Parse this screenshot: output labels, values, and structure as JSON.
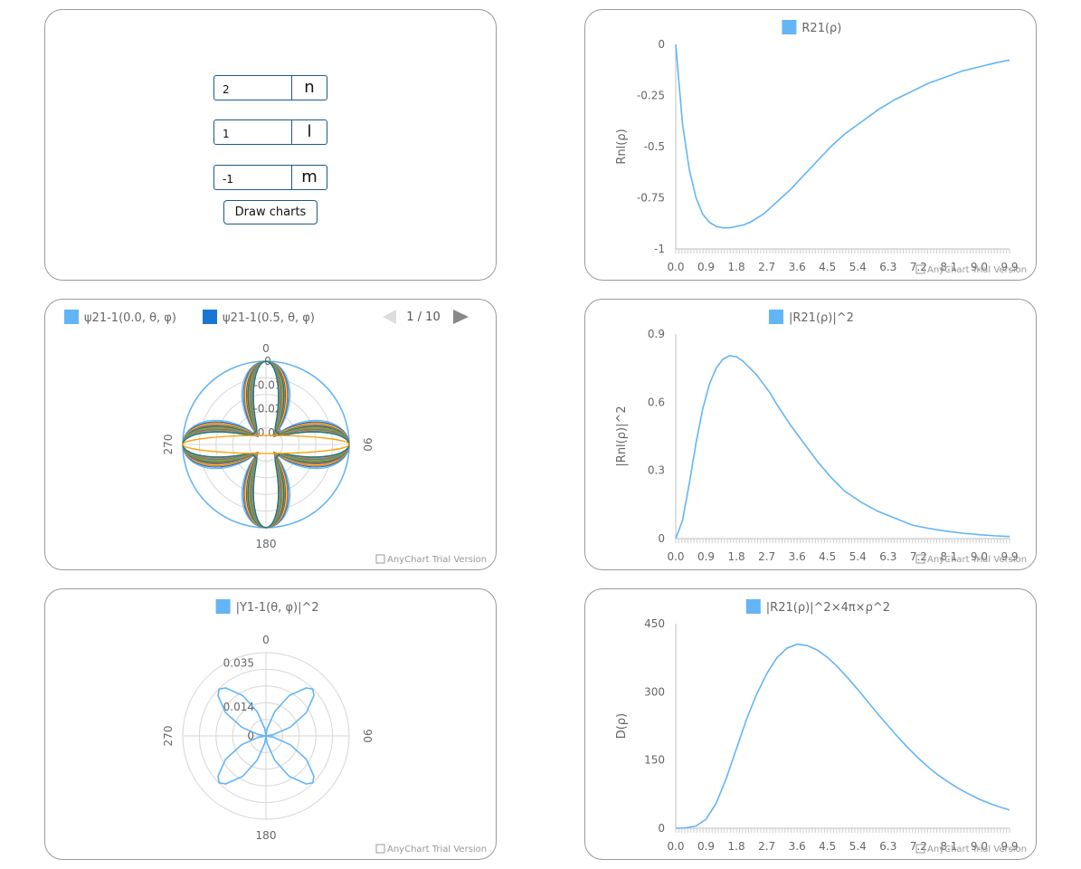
{
  "form": {
    "fields": [
      {
        "value": "2",
        "label": "n"
      },
      {
        "value": "1",
        "label": "l"
      },
      {
        "value": "-1",
        "label": "m"
      }
    ],
    "button_label": "Draw charts"
  },
  "watermark": "AnyChart Trial Version",
  "colors": {
    "series": "#64b5f6",
    "series_dark": "#1976d2",
    "grid": "#d6d6d6",
    "axis": "#bfbfbf",
    "text": "#666666"
  },
  "chart_data": [
    {
      "id": "radial",
      "type": "line",
      "legend": "R21(ρ)",
      "ylabel": "Rnl(ρ)",
      "xlabel": "",
      "x_ticks": [
        "0.0",
        "0.9",
        "1.8",
        "2.7",
        "3.6",
        "4.5",
        "5.4",
        "6.3",
        "7.2",
        "8.1",
        "9.0",
        "9.9"
      ],
      "y_ticks": [
        "0",
        "-0.25",
        "-0.5",
        "-0.75",
        "-1"
      ],
      "xlim": [
        0,
        9.9
      ],
      "ylim": [
        -1,
        0
      ],
      "x": [
        0.0,
        0.2,
        0.4,
        0.6,
        0.8,
        1.0,
        1.2,
        1.4,
        1.6,
        1.8,
        2.0,
        2.2,
        2.4,
        2.6,
        2.8,
        3.0,
        3.4,
        3.8,
        4.2,
        4.6,
        5.0,
        5.5,
        6.0,
        6.5,
        7.0,
        7.5,
        8.0,
        8.5,
        9.0,
        9.5,
        9.9
      ],
      "y": [
        0,
        -0.39,
        -0.61,
        -0.75,
        -0.83,
        -0.87,
        -0.89,
        -0.897,
        -0.897,
        -0.89,
        -0.883,
        -0.87,
        -0.85,
        -0.83,
        -0.8,
        -0.77,
        -0.71,
        -0.64,
        -0.57,
        -0.5,
        -0.44,
        -0.38,
        -0.32,
        -0.27,
        -0.23,
        -0.19,
        -0.16,
        -0.13,
        -0.11,
        -0.09,
        -0.077
      ]
    },
    {
      "id": "radial-squared",
      "type": "line",
      "legend": "|R21(ρ)|^2",
      "ylabel": "|Rnl(ρ)|^2",
      "xlabel": "",
      "x_ticks": [
        "0.0",
        "0.9",
        "1.8",
        "2.7",
        "3.6",
        "4.5",
        "5.4",
        "6.3",
        "7.2",
        "8.1",
        "9.0",
        "9.9"
      ],
      "y_ticks": [
        "0.9",
        "0.6",
        "0.3",
        "0"
      ],
      "xlim": [
        0,
        9.9
      ],
      "ylim": [
        0,
        0.9
      ],
      "x": [
        0.0,
        0.2,
        0.4,
        0.6,
        0.8,
        1.0,
        1.2,
        1.4,
        1.6,
        1.8,
        2.0,
        2.2,
        2.4,
        2.6,
        2.8,
        3.0,
        3.4,
        3.8,
        4.2,
        4.6,
        5.0,
        5.5,
        6.0,
        6.5,
        7.0,
        7.5,
        8.0,
        8.5,
        9.0,
        9.5,
        9.9
      ],
      "y": [
        0,
        0.08,
        0.24,
        0.42,
        0.57,
        0.68,
        0.75,
        0.79,
        0.805,
        0.8,
        0.78,
        0.75,
        0.72,
        0.68,
        0.64,
        0.59,
        0.5,
        0.42,
        0.34,
        0.27,
        0.21,
        0.16,
        0.12,
        0.09,
        0.06,
        0.045,
        0.033,
        0.024,
        0.017,
        0.012,
        0.009
      ]
    },
    {
      "id": "radial-distribution",
      "type": "line",
      "legend": "|R21(ρ)|^2×4π×ρ^2",
      "ylabel": "D(ρ)",
      "xlabel": "",
      "x_ticks": [
        "0.0",
        "0.9",
        "1.8",
        "2.7",
        "3.6",
        "4.5",
        "5.4",
        "6.3",
        "7.2",
        "8.1",
        "9.0",
        "9.9"
      ],
      "y_ticks": [
        "450",
        "300",
        "150",
        "0"
      ],
      "xlim": [
        0,
        9.9
      ],
      "ylim": [
        0,
        450
      ],
      "x": [
        0.0,
        0.3,
        0.6,
        0.9,
        1.2,
        1.5,
        1.8,
        2.1,
        2.4,
        2.7,
        3.0,
        3.3,
        3.6,
        3.9,
        4.2,
        4.5,
        4.8,
        5.1,
        5.4,
        5.7,
        6.0,
        6.3,
        6.6,
        6.9,
        7.2,
        7.5,
        7.8,
        8.1,
        8.4,
        8.7,
        9.0,
        9.3,
        9.6,
        9.9
      ],
      "y": [
        0,
        1,
        5,
        20,
        55,
        110,
        175,
        240,
        295,
        340,
        375,
        396,
        405,
        402,
        392,
        376,
        355,
        331,
        305,
        278,
        251,
        225,
        200,
        176,
        154,
        134,
        116,
        101,
        87,
        75,
        64,
        55,
        47,
        40
      ]
    },
    {
      "id": "angular-squared",
      "type": "polar",
      "legend": "|Y1-1(θ, φ)|^2",
      "angle_labels": [
        "0",
        "90",
        "180",
        "270"
      ],
      "radial_ticks": [
        "0.035",
        "0.014",
        "0"
      ],
      "ylim": [
        0,
        0.04
      ],
      "theta_deg": [
        0,
        10,
        20,
        30,
        40,
        45,
        50,
        60,
        70,
        80,
        90
      ],
      "r": [
        0,
        0.00359,
        0.01238,
        0.02238,
        0.0301,
        0.03183,
        0.0301,
        0.02238,
        0.01238,
        0.00359,
        0
      ]
    },
    {
      "id": "wavefunction-polar",
      "type": "polar",
      "legend_items": [
        "ψ21-1(0.0, θ, φ)",
        "ψ21-1(0.5, θ, φ)"
      ],
      "pager": "1 / 10",
      "angle_labels": [
        "0",
        "90",
        "180",
        "270"
      ],
      "radial_ticks": [
        "0",
        "-0.01",
        "-0.02",
        "-0.03"
      ],
      "ylim": [
        -0.035,
        0
      ],
      "series_count": 24,
      "series_colors": [
        "#64b5f6",
        "#1976d2",
        "#ef6c00",
        "#ffd54f",
        "#455a64",
        "#96a6a6",
        "#dd2c00",
        "#00838f",
        "#00bfa5",
        "#ffa000",
        "#43a047",
        "#9e9d24",
        "#e57373",
        "#3949ab",
        "#7cb342",
        "#8d6e63"
      ]
    }
  ]
}
